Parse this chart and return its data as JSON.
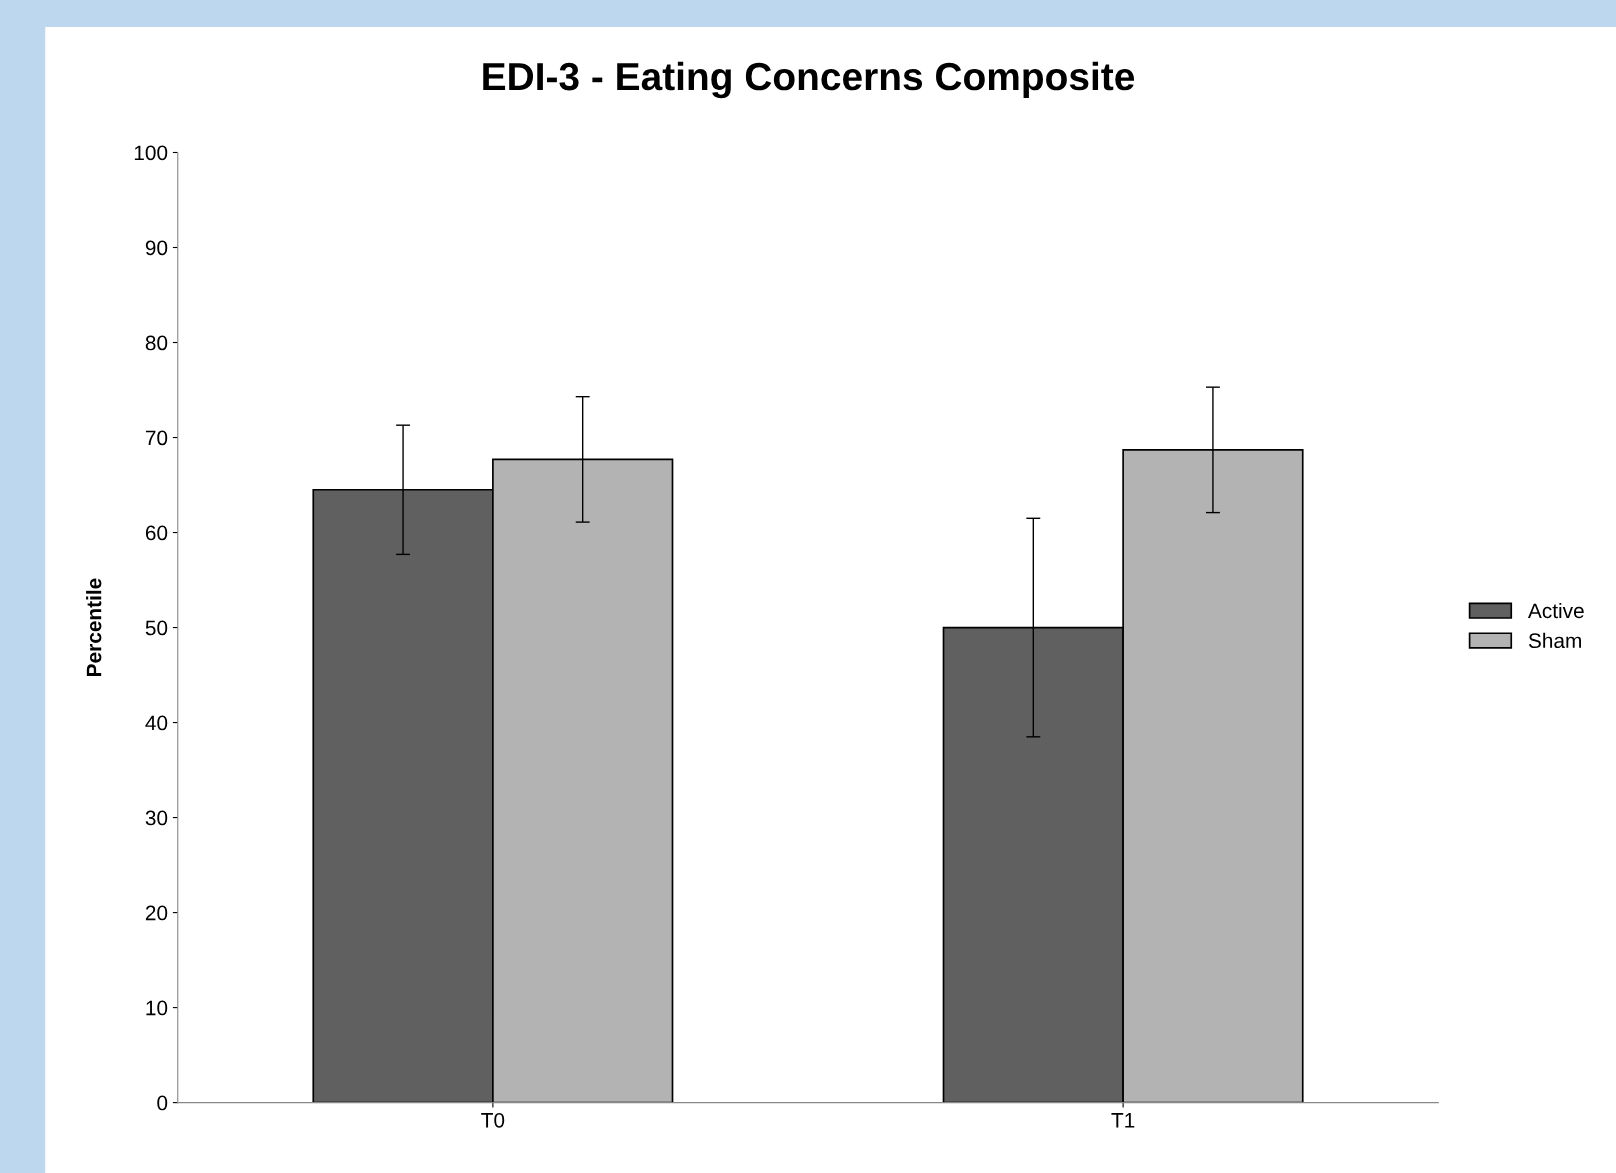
{
  "chart_data": {
    "type": "bar",
    "title": "EDI-3 - Eating Concerns Composite",
    "ylabel": "Percentile",
    "categories": [
      "T0",
      "T1"
    ],
    "series": [
      {
        "name": "Active",
        "color": "#606060",
        "values": [
          64.5,
          50.0
        ],
        "errors": [
          6.8,
          11.5
        ]
      },
      {
        "name": "Sham",
        "color": "#b3b3b3",
        "values": [
          67.7,
          68.7
        ],
        "errors": [
          6.6,
          6.6
        ]
      }
    ],
    "ylim": [
      0,
      100
    ],
    "yticks": [
      0,
      10,
      20,
      30,
      40,
      50,
      60,
      70,
      80,
      90,
      100
    ],
    "grid": false,
    "legend": "right"
  }
}
